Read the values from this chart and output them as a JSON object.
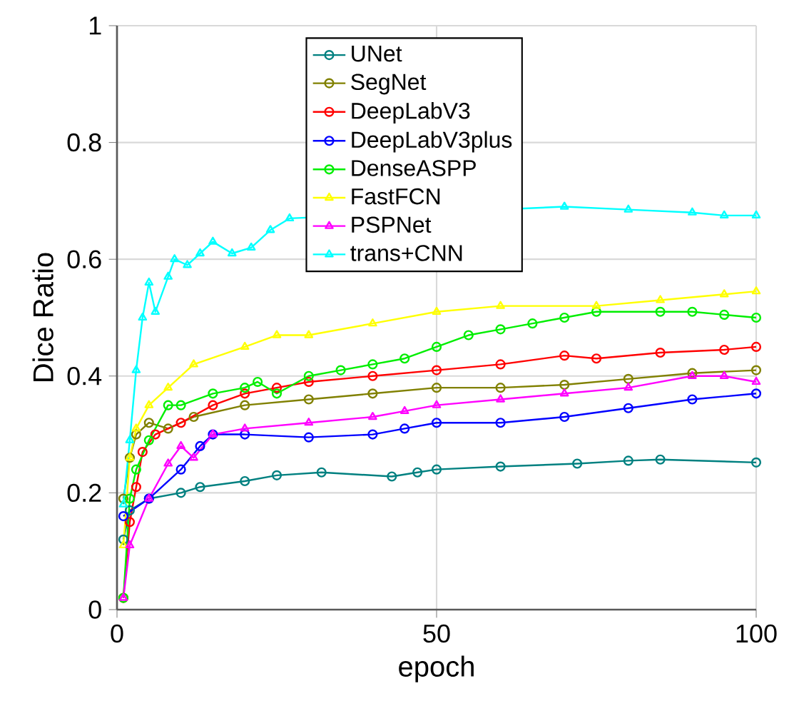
{
  "chart_data": {
    "type": "line",
    "xlabel": "epoch",
    "ylabel": "Dice Ratio",
    "xlim": [
      0,
      100
    ],
    "ylim": [
      0,
      1
    ],
    "xticks": [
      0,
      50,
      100
    ],
    "yticks": [
      0,
      0.2,
      0.4,
      0.6,
      0.8,
      1
    ],
    "grid": true,
    "legend": "top",
    "series": [
      {
        "name": "UNet",
        "color": "#008080",
        "marker": "circle",
        "x": [
          1,
          2,
          5,
          10,
          13,
          20,
          25,
          32,
          43,
          47,
          50,
          60,
          72,
          80,
          85,
          100
        ],
        "values": [
          0.12,
          0.17,
          0.19,
          0.2,
          0.21,
          0.22,
          0.23,
          0.235,
          0.228,
          0.235,
          0.24,
          0.245,
          0.25,
          0.255,
          0.257,
          0.252
        ]
      },
      {
        "name": "SegNet",
        "color": "#808000",
        "marker": "circle",
        "x": [
          1,
          2,
          3,
          5,
          8,
          12,
          20,
          30,
          40,
          50,
          60,
          70,
          80,
          90,
          100
        ],
        "values": [
          0.19,
          0.26,
          0.3,
          0.32,
          0.31,
          0.33,
          0.35,
          0.36,
          0.37,
          0.38,
          0.38,
          0.385,
          0.395,
          0.405,
          0.41
        ]
      },
      {
        "name": "DeepLabV3",
        "color": "#ff0000",
        "marker": "circle",
        "x": [
          1,
          2,
          3,
          4,
          6,
          10,
          15,
          20,
          25,
          30,
          40,
          50,
          60,
          70,
          75,
          85,
          95,
          100
        ],
        "values": [
          0.02,
          0.15,
          0.21,
          0.27,
          0.3,
          0.32,
          0.35,
          0.37,
          0.38,
          0.39,
          0.4,
          0.41,
          0.42,
          0.435,
          0.43,
          0.44,
          0.445,
          0.45
        ]
      },
      {
        "name": "DeepLabV3plus",
        "color": "#0000ff",
        "marker": "circle",
        "x": [
          1,
          5,
          10,
          13,
          15,
          20,
          30,
          40,
          45,
          50,
          60,
          70,
          80,
          90,
          100
        ],
        "values": [
          0.16,
          0.19,
          0.24,
          0.28,
          0.3,
          0.3,
          0.295,
          0.3,
          0.31,
          0.32,
          0.32,
          0.33,
          0.345,
          0.36,
          0.37
        ]
      },
      {
        "name": "DenseASPP",
        "color": "#00ee00",
        "marker": "circle",
        "x": [
          1,
          2,
          3,
          5,
          8,
          10,
          15,
          20,
          22,
          25,
          30,
          35,
          40,
          45,
          50,
          55,
          60,
          65,
          70,
          75,
          85,
          90,
          95,
          100
        ],
        "values": [
          0.02,
          0.19,
          0.24,
          0.29,
          0.35,
          0.35,
          0.37,
          0.38,
          0.39,
          0.37,
          0.4,
          0.41,
          0.42,
          0.43,
          0.45,
          0.47,
          0.48,
          0.49,
          0.5,
          0.51,
          0.51,
          0.51,
          0.505,
          0.5
        ]
      },
      {
        "name": "FastFCN",
        "color": "#ffff00",
        "marker": "triangle",
        "x": [
          1,
          2,
          3,
          5,
          8,
          12,
          20,
          25,
          30,
          40,
          50,
          60,
          75,
          85,
          95,
          100
        ],
        "values": [
          0.11,
          0.26,
          0.31,
          0.35,
          0.38,
          0.42,
          0.45,
          0.47,
          0.47,
          0.49,
          0.51,
          0.52,
          0.52,
          0.53,
          0.54,
          0.545
        ]
      },
      {
        "name": "PSPNet",
        "color": "#ff00ff",
        "marker": "triangle",
        "x": [
          1,
          2,
          5,
          8,
          10,
          12,
          15,
          20,
          30,
          40,
          45,
          50,
          60,
          70,
          80,
          90,
          95,
          100
        ],
        "values": [
          0.02,
          0.11,
          0.19,
          0.25,
          0.28,
          0.26,
          0.3,
          0.31,
          0.32,
          0.33,
          0.34,
          0.35,
          0.36,
          0.37,
          0.38,
          0.4,
          0.4,
          0.39
        ]
      },
      {
        "name": "trans+CNN",
        "color": "#00ffff",
        "marker": "triangle",
        "x": [
          1,
          2,
          3,
          4,
          5,
          6,
          8,
          9,
          11,
          13,
          15,
          18,
          21,
          24,
          27,
          30,
          35,
          40,
          60,
          70,
          80,
          90,
          95,
          100
        ],
        "values": [
          0.18,
          0.29,
          0.41,
          0.5,
          0.56,
          0.51,
          0.57,
          0.6,
          0.59,
          0.61,
          0.63,
          0.61,
          0.62,
          0.65,
          0.67,
          null,
          null,
          null,
          null,
          0.69,
          0.685,
          0.68,
          0.675,
          0.675
        ]
      }
    ]
  }
}
